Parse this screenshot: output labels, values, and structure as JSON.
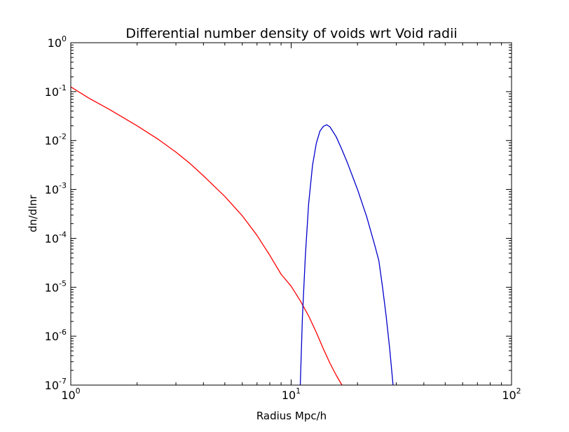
{
  "chart_data": {
    "type": "line",
    "title": "Differential number density of voids wrt Void radii",
    "xlabel": "Radius Mpc/h",
    "ylabel": "dn/dlnr",
    "x_scale": "log",
    "y_scale": "log",
    "xlim": [
      1,
      100
    ],
    "ylim": [
      1e-07,
      1
    ],
    "grid": false,
    "legend": "none",
    "x_ticks": [
      {
        "value": 1,
        "base": "10",
        "exp": "0"
      },
      {
        "value": 10,
        "base": "10",
        "exp": "1"
      },
      {
        "value": 100,
        "base": "10",
        "exp": "2"
      }
    ],
    "y_ticks": [
      {
        "value": 1,
        "base": "10",
        "exp": "0"
      },
      {
        "value": 0.1,
        "base": "10",
        "exp": "-1"
      },
      {
        "value": 0.01,
        "base": "10",
        "exp": "-2"
      },
      {
        "value": 0.001,
        "base": "10",
        "exp": "-3"
      },
      {
        "value": 0.0001,
        "base": "10",
        "exp": "-4"
      },
      {
        "value": 1e-05,
        "base": "10",
        "exp": "-5"
      },
      {
        "value": 1e-06,
        "base": "10",
        "exp": "-6"
      },
      {
        "value": 1e-07,
        "base": "10",
        "exp": "-7"
      }
    ],
    "series": [
      {
        "color": "#ff0000",
        "points": [
          [
            1.0,
            0.125
          ],
          [
            1.2,
            0.075
          ],
          [
            1.5,
            0.043
          ],
          [
            2.0,
            0.02
          ],
          [
            2.5,
            0.0105
          ],
          [
            3.0,
            0.0058
          ],
          [
            3.5,
            0.0033
          ],
          [
            4.0,
            0.0019
          ],
          [
            5.0,
            0.00072
          ],
          [
            6.0,
            0.00029
          ],
          [
            7.0,
            0.000115
          ],
          [
            8.0,
            4.5e-05
          ],
          [
            9.0,
            1.85e-05
          ],
          [
            10.0,
            1.05e-05
          ],
          [
            11.0,
            5.3e-06
          ],
          [
            12.0,
            2.6e-06
          ],
          [
            13.0,
            1.2e-06
          ],
          [
            14.0,
            5.5e-07
          ],
          [
            15.0,
            2.8e-07
          ],
          [
            16.0,
            1.6e-07
          ],
          [
            17.0,
            1e-07
          ]
        ]
      },
      {
        "color": "#0000cc",
        "points": [
          [
            11.0,
            1e-07
          ],
          [
            11.25,
            2.5e-06
          ],
          [
            11.6,
            4.4e-05
          ],
          [
            12.0,
            0.0005
          ],
          [
            12.5,
            0.0031
          ],
          [
            13.0,
            0.0087
          ],
          [
            13.5,
            0.0155
          ],
          [
            14.0,
            0.0195
          ],
          [
            14.5,
            0.021
          ],
          [
            15.0,
            0.019
          ],
          [
            16.0,
            0.012
          ],
          [
            17.0,
            0.0065
          ],
          [
            18.0,
            0.0035
          ],
          [
            20.0,
            0.001
          ],
          [
            22.0,
            0.00028
          ],
          [
            24.0,
            7e-05
          ],
          [
            25.0,
            3.5e-05
          ],
          [
            26.0,
            9.8e-06
          ],
          [
            27.0,
            2.5e-06
          ],
          [
            28.0,
            5.5e-07
          ],
          [
            29.0,
            1e-07
          ]
        ]
      }
    ]
  }
}
